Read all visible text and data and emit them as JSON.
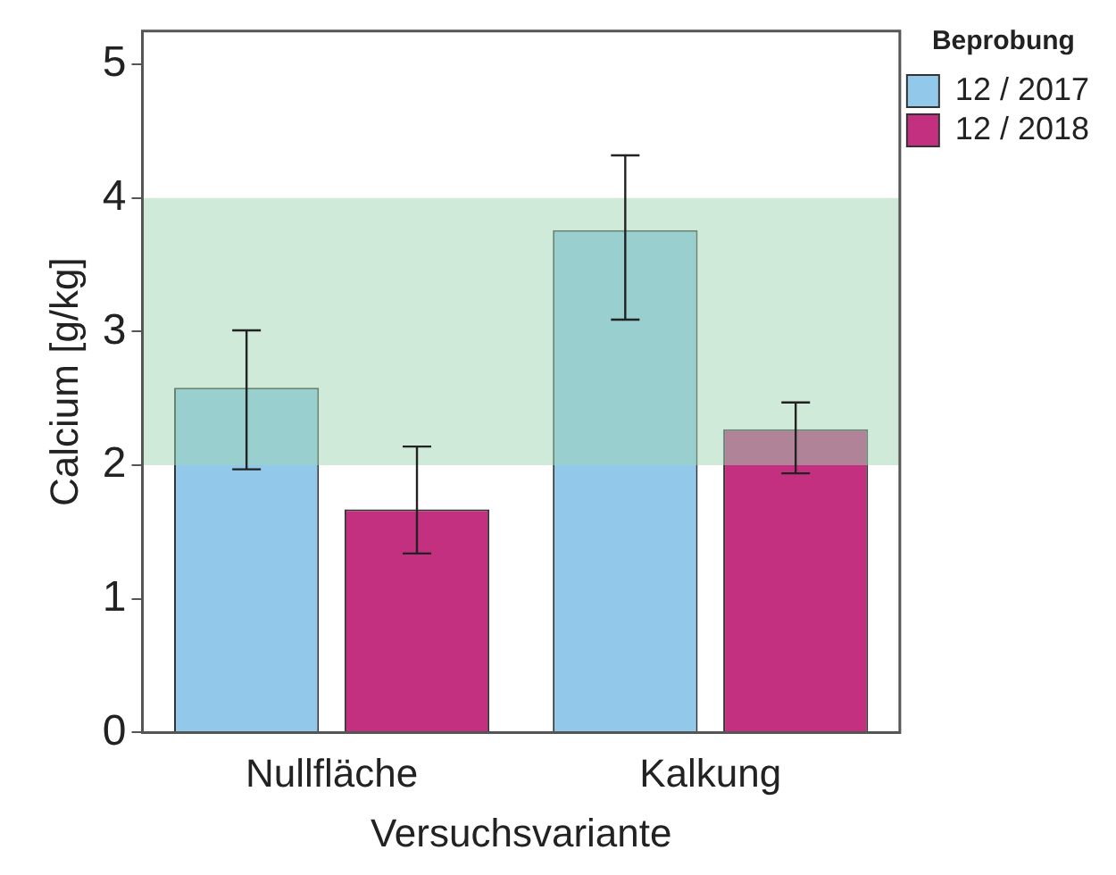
{
  "chart_data": {
    "type": "bar",
    "xlabel": "Versuchsvariante",
    "ylabel": "Calcium [g/kg]",
    "legend_title": "Beprobung",
    "categories": [
      "Nullfläche",
      "Kalkung"
    ],
    "series": [
      {
        "name": "12 / 2017",
        "color": "#92c8ea",
        "values": [
          2.58,
          3.76
        ],
        "errors": [
          [
            1.97,
            3.01
          ],
          [
            3.09,
            4.32
          ]
        ]
      },
      {
        "name": "12 / 2018",
        "color": "#c2307f",
        "values": [
          1.67,
          2.27
        ],
        "errors": [
          [
            1.34,
            2.14
          ],
          [
            1.94,
            2.47
          ]
        ]
      }
    ],
    "ylim": [
      0,
      5.25
    ],
    "yticks": [
      0,
      1,
      2,
      3,
      4,
      5
    ],
    "bands": [
      {
        "axis": "y",
        "from": 2,
        "to": 4,
        "color": "#9fd6b4"
      }
    ],
    "grid": false,
    "legend": "top right"
  }
}
